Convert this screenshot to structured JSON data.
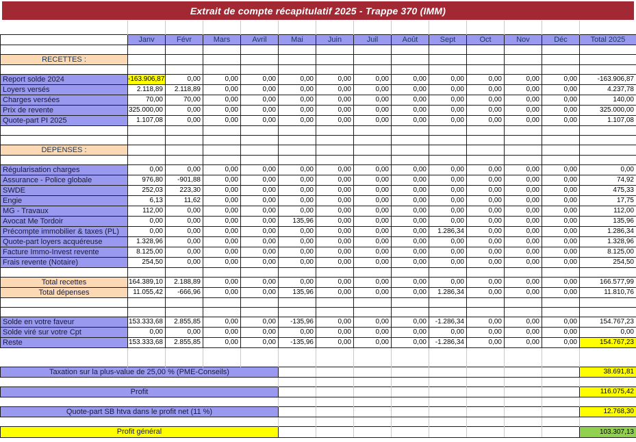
{
  "title": "Extrait de compte récapitulatif 2025 - Trappe 370 (IMM)",
  "colors": {
    "title_bg": "#A22833",
    "header_bg": "#9999F0",
    "label_bg": "#9999F0",
    "section_bg": "#FBD9B5",
    "highlight_yellow": "#FFFF00",
    "highlight_green": "#92D050",
    "header_text": "#17375D"
  },
  "columns": {
    "months": [
      "Janv",
      "Févr",
      "Mars",
      "Avril",
      "Mai",
      "Juin",
      "Juil",
      "Août",
      "Sept",
      "Oct",
      "Nov",
      "Déc"
    ],
    "total_label": "Total 2025"
  },
  "rows": [
    {
      "type": "spacer",
      "name": "top-gap"
    },
    {
      "type": "header",
      "name": "month-header"
    },
    {
      "type": "empty"
    },
    {
      "type": "section",
      "label": "RECETTES :"
    },
    {
      "type": "empty"
    },
    {
      "type": "data",
      "label": "Report solde 2024",
      "values": [
        "-163.906,87",
        "0,00",
        "0,00",
        "0,00",
        "0,00",
        "0,00",
        "0,00",
        "0,00",
        "0,00",
        "0,00",
        "0,00",
        "0,00"
      ],
      "total": "-163.906,87",
      "hl": {
        "0": "yellow"
      }
    },
    {
      "type": "data",
      "label": "Loyers versés",
      "values": [
        "2.118,89",
        "2.118,89",
        "0,00",
        "0,00",
        "0,00",
        "0,00",
        "0,00",
        "0,00",
        "0,00",
        "0,00",
        "0,00",
        "0,00"
      ],
      "total": "4.237,78"
    },
    {
      "type": "data",
      "label": "Charges versées",
      "values": [
        "70,00",
        "70,00",
        "0,00",
        "0,00",
        "0,00",
        "0,00",
        "0,00",
        "0,00",
        "0,00",
        "0,00",
        "0,00",
        "0,00"
      ],
      "total": "140,00"
    },
    {
      "type": "data",
      "label": "Prix de revente",
      "values": [
        "325.000,00",
        "0,00",
        "0,00",
        "0,00",
        "0,00",
        "0,00",
        "0,00",
        "0,00",
        "0,00",
        "0,00",
        "0,00",
        "0,00"
      ],
      "total": "325.000,00"
    },
    {
      "type": "data",
      "label": "Quote-part PI 2025",
      "values": [
        "1.107,08",
        "0,00",
        "0,00",
        "0,00",
        "0,00",
        "0,00",
        "0,00",
        "0,00",
        "0,00",
        "0,00",
        "0,00",
        "0,00"
      ],
      "total": "1.107,08"
    },
    {
      "type": "empty"
    },
    {
      "type": "empty"
    },
    {
      "type": "section",
      "label": "DEPENSES :"
    },
    {
      "type": "empty"
    },
    {
      "type": "data",
      "label": "Régularisation charges",
      "values": [
        "0,00",
        "0,00",
        "0,00",
        "0,00",
        "0,00",
        "0,00",
        "0,00",
        "0,00",
        "0,00",
        "0,00",
        "0,00",
        "0,00"
      ],
      "total": "0,00"
    },
    {
      "type": "data",
      "label": "Assurance - Police globale",
      "values": [
        "976,80",
        "-901,88",
        "0,00",
        "0,00",
        "0,00",
        "0,00",
        "0,00",
        "0,00",
        "0,00",
        "0,00",
        "0,00",
        "0,00"
      ],
      "total": "74,92"
    },
    {
      "type": "data",
      "label": "SWDE",
      "values": [
        "252,03",
        "223,30",
        "0,00",
        "0,00",
        "0,00",
        "0,00",
        "0,00",
        "0,00",
        "0,00",
        "0,00",
        "0,00",
        "0,00"
      ],
      "total": "475,33"
    },
    {
      "type": "data",
      "label": "Engie",
      "values": [
        "6,13",
        "11,62",
        "0,00",
        "0,00",
        "0,00",
        "0,00",
        "0,00",
        "0,00",
        "0,00",
        "0,00",
        "0,00",
        "0,00"
      ],
      "total": "17,75"
    },
    {
      "type": "data",
      "label": "MG - Travaux",
      "values": [
        "112,00",
        "0,00",
        "0,00",
        "0,00",
        "0,00",
        "0,00",
        "0,00",
        "0,00",
        "0,00",
        "0,00",
        "0,00",
        "0,00"
      ],
      "total": "112,00"
    },
    {
      "type": "data",
      "label": "Avocat Me Tordoir",
      "values": [
        "0,00",
        "0,00",
        "0,00",
        "0,00",
        "135,96",
        "0,00",
        "0,00",
        "0,00",
        "0,00",
        "0,00",
        "0,00",
        "0,00"
      ],
      "total": "135,96"
    },
    {
      "type": "data",
      "label": "Précompte immobilier & taxes (PL)",
      "values": [
        "0,00",
        "0,00",
        "0,00",
        "0,00",
        "0,00",
        "0,00",
        "0,00",
        "0,00",
        "1.286,34",
        "0,00",
        "0,00",
        "0,00"
      ],
      "total": "1.286,34"
    },
    {
      "type": "data",
      "label": "Quote-part loyers acquéreuse",
      "values": [
        "1.328,96",
        "0,00",
        "0,00",
        "0,00",
        "0,00",
        "0,00",
        "0,00",
        "0,00",
        "0,00",
        "0,00",
        "0,00",
        "0,00"
      ],
      "total": "1.328,96"
    },
    {
      "type": "data",
      "label": "Facture Immo-Invest revente",
      "values": [
        "8.125,00",
        "0,00",
        "0,00",
        "0,00",
        "0,00",
        "0,00",
        "0,00",
        "0,00",
        "0,00",
        "0,00",
        "0,00",
        "0,00"
      ],
      "total": "8.125,00"
    },
    {
      "type": "data",
      "label": "Frais revente (Notaire)",
      "values": [
        "254,50",
        "0,00",
        "0,00",
        "0,00",
        "0,00",
        "0,00",
        "0,00",
        "0,00",
        "0,00",
        "0,00",
        "0,00",
        "0,00"
      ],
      "total": "254,50"
    },
    {
      "type": "empty"
    },
    {
      "type": "total",
      "label": "Total recettes",
      "values": [
        "164.389,10",
        "2.188,89",
        "0,00",
        "0,00",
        "0,00",
        "0,00",
        "0,00",
        "0,00",
        "0,00",
        "0,00",
        "0,00",
        "0,00"
      ],
      "total": "166.577,99"
    },
    {
      "type": "total",
      "label": "Total dépenses",
      "values": [
        "11.055,42",
        "-666,96",
        "0,00",
        "0,00",
        "135,96",
        "0,00",
        "0,00",
        "0,00",
        "1.286,34",
        "0,00",
        "0,00",
        "0,00"
      ],
      "total": "11.810,76"
    },
    {
      "type": "empty"
    },
    {
      "type": "empty"
    },
    {
      "type": "data",
      "label": "Solde en votre faveur",
      "values": [
        "153.333,68",
        "2.855,85",
        "0,00",
        "0,00",
        "-135,96",
        "0,00",
        "0,00",
        "0,00",
        "-1.286,34",
        "0,00",
        "0,00",
        "0,00"
      ],
      "total": "154.767,23"
    },
    {
      "type": "data",
      "label": "Solde viré sur votre Cpt",
      "values": [
        "0,00",
        "0,00",
        "0,00",
        "0,00",
        "0,00",
        "0,00",
        "0,00",
        "0,00",
        "0,00",
        "0,00",
        "0,00",
        "0,00"
      ],
      "total": "0,00"
    },
    {
      "type": "data",
      "label": "Reste",
      "values": [
        "153.333,68",
        "2.855,85",
        "0,00",
        "0,00",
        "-135,96",
        "0,00",
        "0,00",
        "0,00",
        "-1.286,34",
        "0,00",
        "0,00",
        "0,00"
      ],
      "total": "154.767,23",
      "thl": "yellow"
    },
    {
      "type": "spacer"
    },
    {
      "type": "spacer"
    },
    {
      "type": "bar",
      "label": "Taxation sur la plus-value de 25,00 % (PME-Conseils)",
      "value": "38.691,81",
      "bar": "lav",
      "value_bg": "yellow"
    },
    {
      "type": "spacer",
      "zone": "bottom"
    },
    {
      "type": "bar",
      "label": "Profit",
      "value": "116.075,42",
      "bar": "lav",
      "value_bg": "yellow"
    },
    {
      "type": "spacer",
      "zone": "bottom"
    },
    {
      "type": "bar",
      "label": "Quote-part SB htva dans le profit net (11 %)",
      "value": "12.768,30",
      "bar": "lav",
      "value_bg": "yellow"
    },
    {
      "type": "spacer",
      "zone": "bottom"
    },
    {
      "type": "bar",
      "label": "Profit général",
      "value": "103.307,13",
      "bar": "yellow",
      "value_bg": "green"
    }
  ]
}
